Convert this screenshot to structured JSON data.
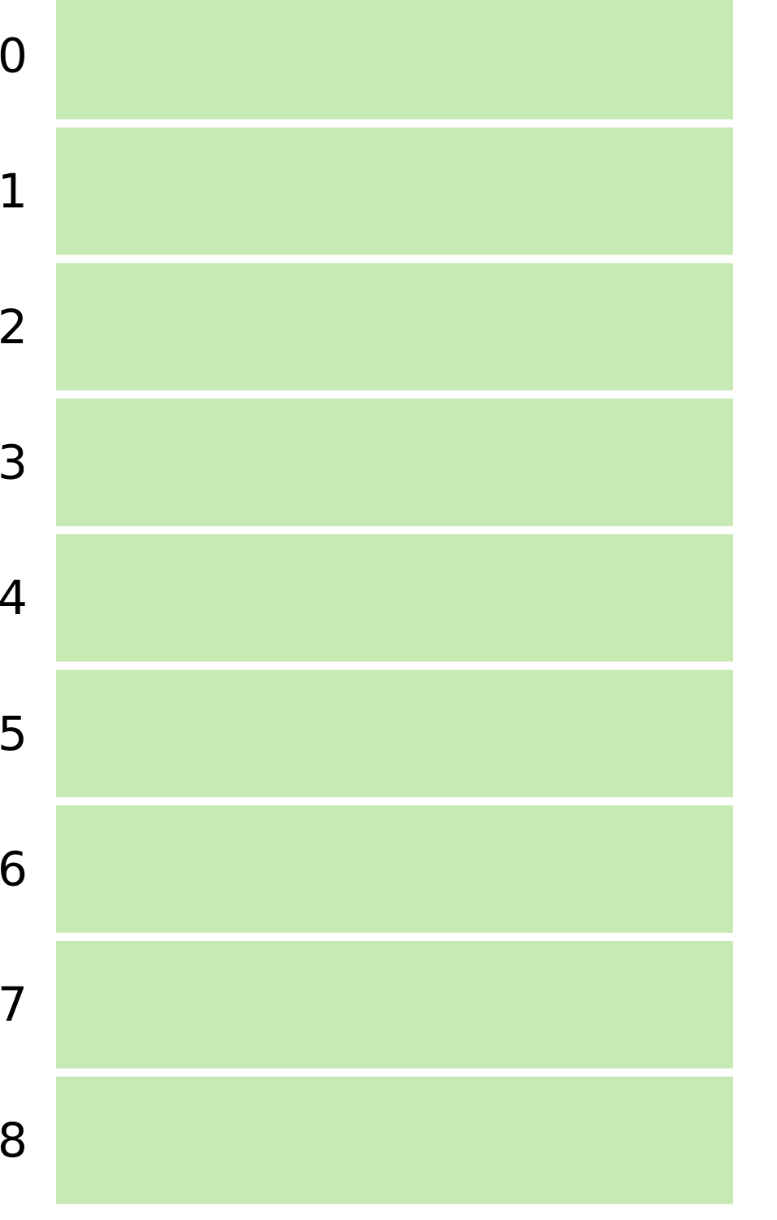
{
  "chart_data": {
    "type": "heatmap",
    "rows": [
      "0",
      "1",
      "2",
      "3",
      "4",
      "5",
      "6",
      "7",
      "8"
    ],
    "columns": [
      ""
    ],
    "values": [
      [
        1
      ],
      [
        1
      ],
      [
        1
      ],
      [
        1
      ],
      [
        1
      ],
      [
        1
      ],
      [
        1
      ],
      [
        1
      ],
      [
        1
      ]
    ],
    "cell_color": "#c7e9b4",
    "title": "",
    "xlabel": "",
    "ylabel": "",
    "grid": false,
    "legend": "none"
  }
}
